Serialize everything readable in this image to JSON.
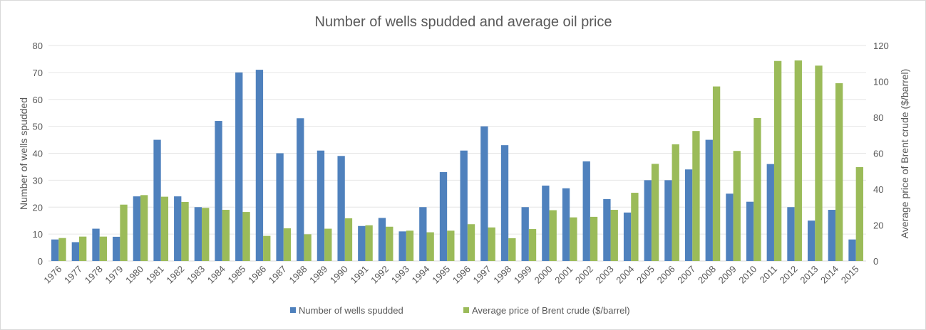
{
  "chart_data": {
    "type": "bar",
    "title": "Number of wells spudded  and average oil price",
    "ylabel": "Number of wells spudded",
    "y2label": "Average price of Brent crude ($/barrel)",
    "ylim": [
      0,
      80
    ],
    "y2lim": [
      0,
      120
    ],
    "yticks": [
      0,
      10,
      20,
      30,
      40,
      50,
      60,
      70,
      80
    ],
    "y2ticks": [
      0,
      20,
      40,
      60,
      80,
      100,
      120
    ],
    "grid": true,
    "legend": "bottom",
    "categories": [
      "1976",
      "1977",
      "1978",
      "1979",
      "1980",
      "1981",
      "1982",
      "1983",
      "1984",
      "1985",
      "1986",
      "1987",
      "1988",
      "1989",
      "1990",
      "1991",
      "1992",
      "1993",
      "1994",
      "1995",
      "1996",
      "1997",
      "1998",
      "1999",
      "2000",
      "2001",
      "2002",
      "2003",
      "2004",
      "2005",
      "2006",
      "2007",
      "2008",
      "2009",
      "2010",
      "2011",
      "2012",
      "2013",
      "2014",
      "2015"
    ],
    "series": [
      {
        "name": "Number of wells spudded",
        "axis": "left",
        "color": "#4f81bd",
        "values": [
          8,
          7,
          12,
          9,
          24,
          45,
          24,
          20,
          52,
          70,
          71,
          40,
          53,
          41,
          39,
          13,
          16,
          11,
          20,
          33,
          41,
          50,
          43,
          20,
          28,
          27,
          37,
          23,
          18,
          30,
          30,
          34,
          45,
          25,
          22,
          36,
          20,
          15,
          19,
          8
        ]
      },
      {
        "name": "Average price of Brent crude ($/barrel)",
        "axis": "right",
        "color": "#9bbb59",
        "values": [
          12.8,
          13.6,
          13.6,
          31.4,
          36.7,
          35.8,
          32.9,
          29.6,
          28.5,
          27.3,
          14.0,
          18.2,
          14.9,
          18.0,
          23.8,
          19.9,
          19.1,
          16.9,
          16.0,
          16.9,
          20.5,
          18.7,
          12.7,
          17.8,
          28.3,
          24.3,
          24.6,
          28.5,
          38.0,
          54.1,
          65.0,
          72.4,
          97.2,
          61.3,
          79.6,
          111.4,
          111.7,
          108.8,
          99.0,
          52.3
        ]
      }
    ]
  }
}
